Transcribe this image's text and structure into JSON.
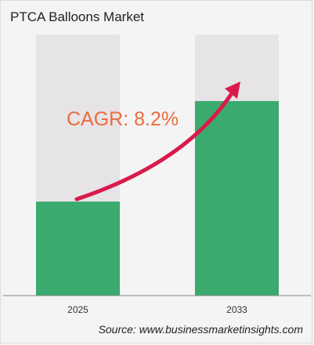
{
  "title": "PTCA Balloons Market",
  "source": "Source: www.businessmarketinsights.com",
  "cagr_label": "CAGR: 8.2%",
  "colors": {
    "bar_fill": "#3aaa6e",
    "bar_track": "#e6e4e6",
    "arrow": "#d81b4c",
    "cagr_text": "#ec6b3c",
    "axis": "#888888"
  },
  "chart_data": {
    "type": "bar",
    "categories": [
      "2025",
      "2033"
    ],
    "values": [
      0.36,
      0.745
    ],
    "value_scale": "fraction of bar track height",
    "annotation": "CAGR: 8.2%",
    "grid": false,
    "legend": "none"
  }
}
